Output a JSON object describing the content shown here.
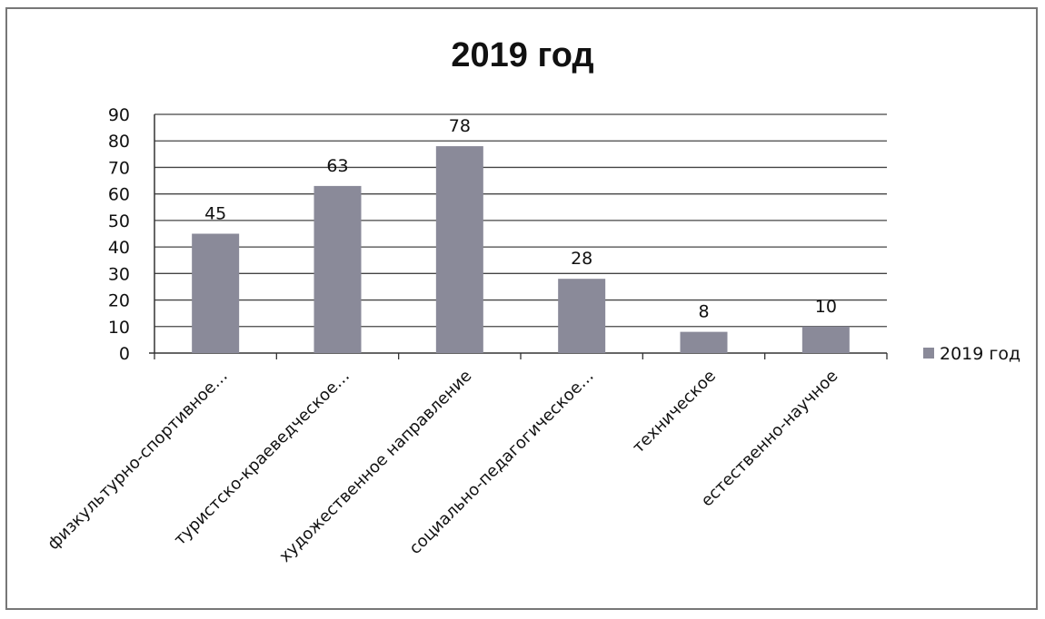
{
  "chart_data": {
    "type": "bar",
    "title": "2019 год",
    "categories": [
      "физкультурно-спортивное…",
      "туристско-краеведческое…",
      "художественное направление",
      "социально-педагогическое…",
      "техническое",
      "естественно-научное"
    ],
    "series": [
      {
        "name": "2019 год",
        "values": [
          45,
          63,
          78,
          28,
          8,
          10
        ]
      }
    ],
    "data_labels": [
      "45",
      "63",
      "78",
      "28",
      "8",
      "10"
    ],
    "ylim": [
      0,
      90
    ],
    "yticks": [
      "0",
      "10",
      "20",
      "30",
      "40",
      "50",
      "60",
      "70",
      "80",
      "90"
    ],
    "grid": true,
    "legend_position": "right",
    "colors": {
      "bar": "#8a8a99",
      "grid": "#444444",
      "axis": "#333333"
    }
  }
}
